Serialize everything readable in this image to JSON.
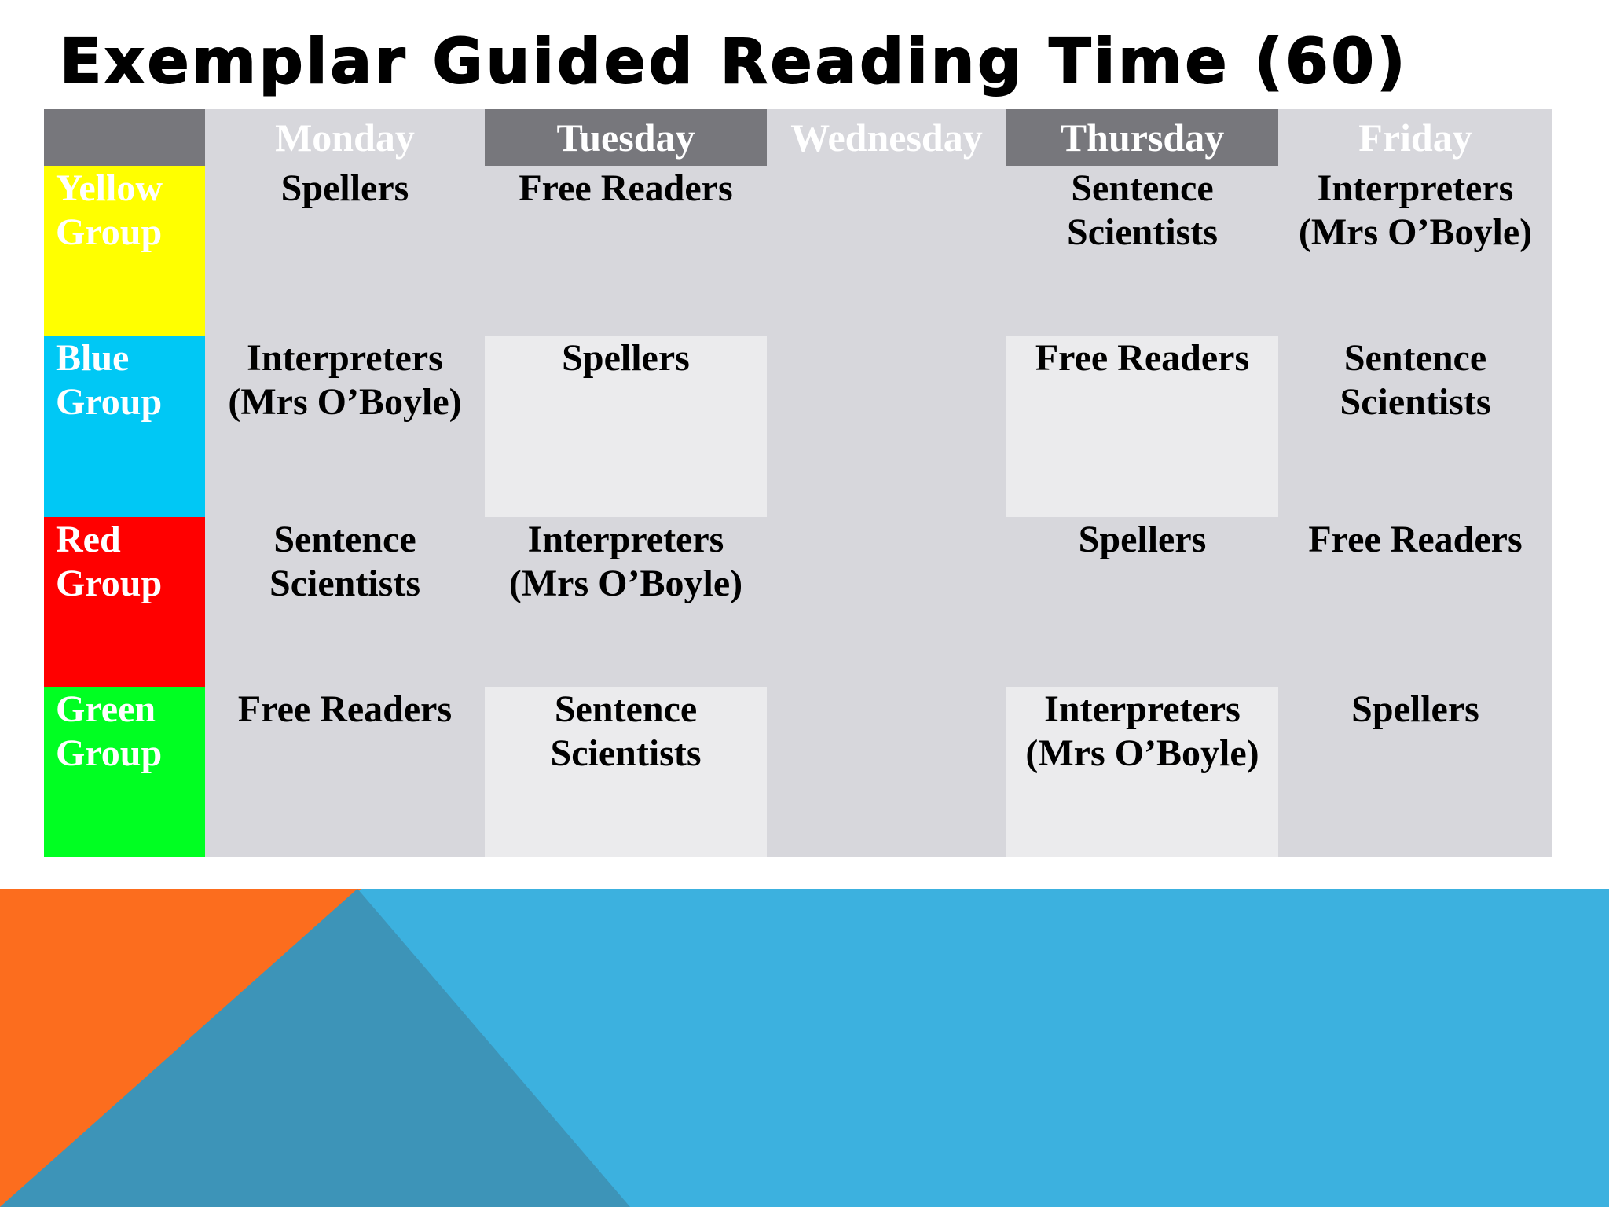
{
  "title": "Exemplar Guided Reading Time (60)",
  "colors": {
    "header_dark": "#77777c",
    "cell_mid": "#d7d7dc",
    "cell_light": "#ebebed",
    "yellow_group": "#ffff00",
    "blue_group": "#00c8f5",
    "red_group": "#ff0000",
    "green_group": "#00ff22",
    "decor_blue": "#3cb1df",
    "decor_orange": "#fc6d1e",
    "decor_teal": "#3d94b8"
  },
  "days": [
    "Monday",
    "Tuesday",
    "Wednesday",
    "Thursday",
    "Friday"
  ],
  "groups": [
    {
      "label": "Yellow Group",
      "color": "#ffff00",
      "activities": [
        "Spellers",
        "Free Readers",
        "",
        "Sentence Scientists",
        "Interpreters (Mrs O’Boyle)"
      ]
    },
    {
      "label": "Blue Group",
      "color": "#00c8f5",
      "activities": [
        "Interpreters (Mrs O’Boyle)",
        "Spellers",
        "",
        "Free Readers",
        "Sentence Scientists"
      ]
    },
    {
      "label": "Red Group",
      "color": "#ff0000",
      "activities": [
        "Sentence Scientists",
        "Interpreters (Mrs O’Boyle)",
        "",
        "Spellers",
        "Free Readers"
      ]
    },
    {
      "label": "Green Group",
      "color": "#00ff22",
      "activities": [
        "Free Readers",
        "Sentence Scientists",
        "",
        "Interpreters (Mrs O’Boyle)",
        "Spellers"
      ]
    }
  ]
}
